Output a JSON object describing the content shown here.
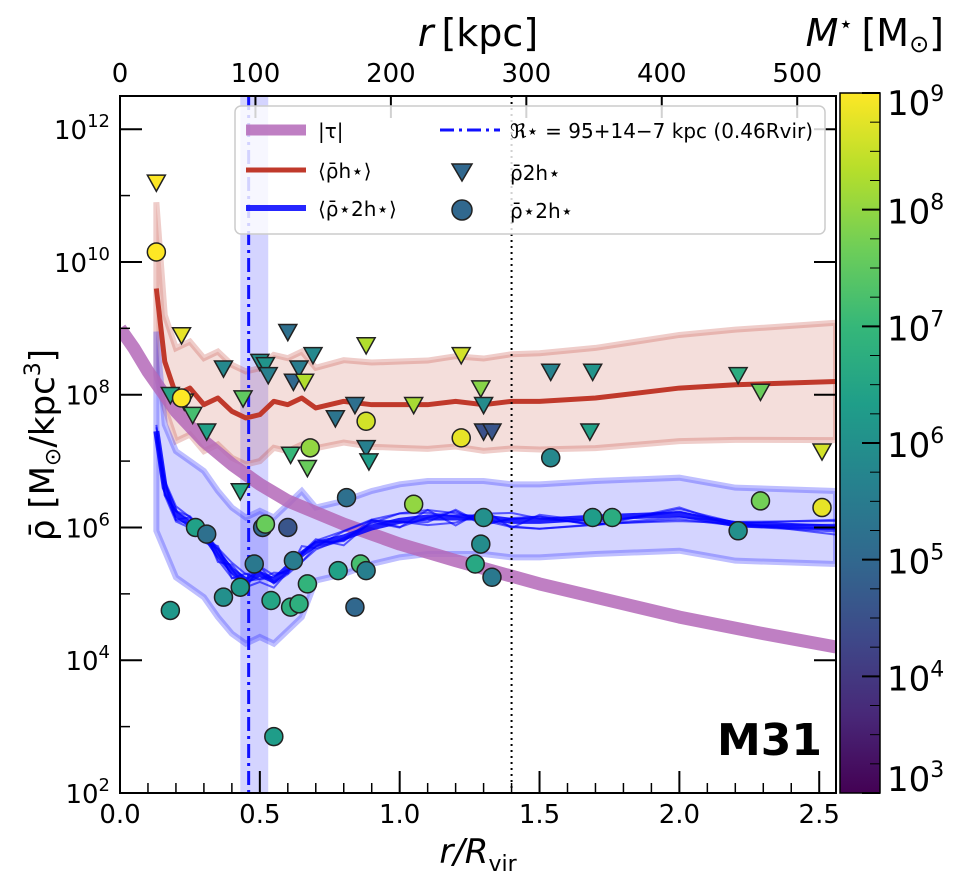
{
  "chart_data": {
    "type": "scatter",
    "panel_label": "M31",
    "x_bottom": {
      "label_main": "r/R",
      "label_sub": "vir",
      "ticks": [
        0.0,
        0.5,
        1.0,
        1.5,
        2.0,
        2.5
      ],
      "tick_labels": [
        "0.0",
        "0.5",
        "1.0",
        "1.5",
        "2.0",
        "2.5"
      ],
      "range": [
        0.0,
        2.56
      ]
    },
    "x_top": {
      "label_italic": "r",
      "label_unit": "[kpc]",
      "ticks": [
        0,
        100,
        200,
        300,
        400,
        500
      ],
      "tick_labels": [
        "0",
        "100",
        "200",
        "300",
        "400",
        "500"
      ],
      "kpc_per_rvir": 206.5
    },
    "y": {
      "label_main": "ρ̄ [M",
      "label_sun": "⊙",
      "label_tail": "/kpc",
      "label_exp": "3",
      "label_close": "]",
      "log_range": [
        2,
        12.5
      ],
      "ticks": [
        2,
        4,
        6,
        8,
        10,
        12
      ],
      "tick_base": "10",
      "tick_exps": [
        "2",
        "4",
        "6",
        "8",
        "10",
        "12"
      ]
    },
    "colorbar": {
      "title_main": "M",
      "title_star": "⋆",
      "title_unit": "[M",
      "title_sun": "⊙",
      "title_close": "]",
      "log_range": [
        3,
        9
      ],
      "ticks": [
        3,
        4,
        5,
        6,
        7,
        8,
        9
      ],
      "tick_base": "10",
      "tick_exps": [
        "3",
        "4",
        "5",
        "6",
        "7",
        "8",
        "9"
      ],
      "colors": [
        "#440154",
        "#482878",
        "#3e4989",
        "#31688e",
        "#26828e",
        "#1f9e89",
        "#35b779",
        "#6ece58",
        "#b5de2b",
        "#fde725"
      ]
    },
    "vline_dotted_x": 1.4,
    "vline_dashdot": {
      "x": 0.46,
      "band": [
        0.43,
        0.53
      ],
      "color": "#1010ff"
    },
    "legend": {
      "tau_label": "|τ|",
      "rho_h_label": "⟨ρ̄h⋆⟩",
      "rho_2h_label": "⟨ρ̄⋆2h⋆⟩",
      "radius_label": "ℜ⋆ = 95+14−7 kpc (0.46Rvir)",
      "tri_label": "ρ̄2h⋆",
      "circ_label": "ρ̄⋆2h⋆"
    },
    "series": [
      {
        "name": "|τ|",
        "color": "#b469b9",
        "x": [
          0.0,
          0.05,
          0.1,
          0.15,
          0.2,
          0.3,
          0.4,
          0.5,
          0.6,
          0.8,
          1.0,
          1.2,
          1.5,
          1.8,
          2.0,
          2.3,
          2.56
        ],
        "y": [
          9.0,
          8.7,
          8.35,
          8.05,
          7.75,
          7.3,
          6.95,
          6.65,
          6.4,
          6.05,
          5.75,
          5.5,
          5.15,
          4.85,
          4.65,
          4.4,
          4.2
        ]
      },
      {
        "name": "⟨ρ̄h⋆⟩",
        "color": "#c0392b",
        "x": [
          0.13,
          0.16,
          0.2,
          0.25,
          0.3,
          0.35,
          0.4,
          0.45,
          0.5,
          0.55,
          0.6,
          0.65,
          0.7,
          0.8,
          0.9,
          1.0,
          1.1,
          1.2,
          1.3,
          1.4,
          1.5,
          1.7,
          2.0,
          2.2,
          2.56
        ],
        "y": [
          9.6,
          8.5,
          8.0,
          8.1,
          7.85,
          7.95,
          7.75,
          7.65,
          7.7,
          7.9,
          7.85,
          7.95,
          7.8,
          7.9,
          7.85,
          7.85,
          7.85,
          7.9,
          7.85,
          7.9,
          7.9,
          7.95,
          8.1,
          8.15,
          8.2
        ]
      },
      {
        "name": "⟨ρ̄⋆2h⋆⟩",
        "color": "#0000ff",
        "x": [
          0.13,
          0.16,
          0.2,
          0.25,
          0.3,
          0.35,
          0.4,
          0.45,
          0.5,
          0.55,
          0.6,
          0.65,
          0.7,
          0.8,
          0.9,
          1.0,
          1.1,
          1.2,
          1.3,
          1.4,
          1.5,
          1.7,
          2.0,
          2.2,
          2.56
        ],
        "y": [
          7.45,
          6.6,
          6.2,
          6.05,
          5.9,
          5.6,
          5.35,
          5.2,
          5.3,
          5.2,
          5.4,
          5.6,
          5.75,
          5.85,
          6.0,
          6.1,
          6.15,
          6.15,
          6.15,
          6.1,
          6.1,
          6.15,
          6.2,
          6.05,
          6.0
        ]
      }
    ],
    "triangles": [
      {
        "x": 0.13,
        "y": 11.2,
        "m": 9.0
      },
      {
        "x": 0.22,
        "y": 8.9,
        "m": 8.8
      },
      {
        "x": 0.18,
        "y": 8.0,
        "m": 6.5
      },
      {
        "x": 0.23,
        "y": 7.9,
        "m": 8.6
      },
      {
        "x": 0.26,
        "y": 7.7,
        "m": 7.2
      },
      {
        "x": 0.31,
        "y": 7.45,
        "m": 6.4
      },
      {
        "x": 0.37,
        "y": 8.4,
        "m": 5.8
      },
      {
        "x": 0.44,
        "y": 7.95,
        "m": 7.5
      },
      {
        "x": 0.43,
        "y": 6.55,
        "m": 6.6
      },
      {
        "x": 0.5,
        "y": 8.5,
        "m": 6.0
      },
      {
        "x": 0.52,
        "y": 8.45,
        "m": 6.1
      },
      {
        "x": 0.53,
        "y": 8.3,
        "m": 5.6
      },
      {
        "x": 0.6,
        "y": 8.95,
        "m": 5.2
      },
      {
        "x": 0.62,
        "y": 8.2,
        "m": 5.0
      },
      {
        "x": 0.64,
        "y": 8.4,
        "m": 5.5
      },
      {
        "x": 0.66,
        "y": 8.2,
        "m": 8.3
      },
      {
        "x": 0.69,
        "y": 8.6,
        "m": 5.8
      },
      {
        "x": 0.61,
        "y": 7.1,
        "m": 7.0
      },
      {
        "x": 0.67,
        "y": 6.9,
        "m": 7.6
      },
      {
        "x": 0.77,
        "y": 7.65,
        "m": 5.3
      },
      {
        "x": 0.84,
        "y": 7.85,
        "m": 5.2
      },
      {
        "x": 0.88,
        "y": 8.75,
        "m": 8.3
      },
      {
        "x": 0.88,
        "y": 7.2,
        "m": 5.6
      },
      {
        "x": 0.89,
        "y": 7.0,
        "m": 6.3
      },
      {
        "x": 1.05,
        "y": 7.85,
        "m": 8.2
      },
      {
        "x": 1.22,
        "y": 8.6,
        "m": 8.6
      },
      {
        "x": 1.29,
        "y": 8.1,
        "m": 7.9
      },
      {
        "x": 1.3,
        "y": 7.85,
        "m": 5.9
      },
      {
        "x": 1.3,
        "y": 7.45,
        "m": 4.5
      },
      {
        "x": 1.33,
        "y": 7.45,
        "m": 4.6
      },
      {
        "x": 1.54,
        "y": 8.35,
        "m": 5.7
      },
      {
        "x": 1.69,
        "y": 8.35,
        "m": 6.1
      },
      {
        "x": 1.68,
        "y": 7.45,
        "m": 6.4
      },
      {
        "x": 2.21,
        "y": 8.3,
        "m": 6.7
      },
      {
        "x": 2.29,
        "y": 8.05,
        "m": 7.6
      },
      {
        "x": 2.51,
        "y": 7.15,
        "m": 8.6
      }
    ],
    "circles": [
      {
        "x": 0.13,
        "y": 10.15,
        "m": 9.0
      },
      {
        "x": 0.22,
        "y": 7.95,
        "m": 9.0
      },
      {
        "x": 0.18,
        "y": 4.75,
        "m": 6.2
      },
      {
        "x": 0.27,
        "y": 6.0,
        "m": 6.4
      },
      {
        "x": 0.31,
        "y": 5.9,
        "m": 5.2
      },
      {
        "x": 0.37,
        "y": 4.95,
        "m": 6.0
      },
      {
        "x": 0.43,
        "y": 5.1,
        "m": 6.2
      },
      {
        "x": 0.48,
        "y": 5.45,
        "m": 5.4
      },
      {
        "x": 0.51,
        "y": 6.0,
        "m": 5.0
      },
      {
        "x": 0.52,
        "y": 6.05,
        "m": 7.6
      },
      {
        "x": 0.54,
        "y": 4.9,
        "m": 6.5
      },
      {
        "x": 0.55,
        "y": 2.85,
        "m": 6.3
      },
      {
        "x": 0.6,
        "y": 6.0,
        "m": 4.6
      },
      {
        "x": 0.61,
        "y": 4.8,
        "m": 6.8
      },
      {
        "x": 0.62,
        "y": 5.5,
        "m": 5.5
      },
      {
        "x": 0.64,
        "y": 4.85,
        "m": 6.8
      },
      {
        "x": 0.67,
        "y": 5.15,
        "m": 6.9
      },
      {
        "x": 0.68,
        "y": 7.2,
        "m": 8.0
      },
      {
        "x": 0.78,
        "y": 5.35,
        "m": 6.4
      },
      {
        "x": 0.81,
        "y": 6.45,
        "m": 5.2
      },
      {
        "x": 0.84,
        "y": 4.8,
        "m": 5.0
      },
      {
        "x": 0.86,
        "y": 5.45,
        "m": 7.2
      },
      {
        "x": 0.88,
        "y": 7.6,
        "m": 8.6
      },
      {
        "x": 0.88,
        "y": 5.35,
        "m": 5.6
      },
      {
        "x": 1.05,
        "y": 6.35,
        "m": 8.0
      },
      {
        "x": 1.22,
        "y": 7.35,
        "m": 8.8
      },
      {
        "x": 1.27,
        "y": 5.45,
        "m": 6.6
      },
      {
        "x": 1.29,
        "y": 5.75,
        "m": 5.9
      },
      {
        "x": 1.3,
        "y": 6.15,
        "m": 6.0
      },
      {
        "x": 1.33,
        "y": 5.25,
        "m": 5.4
      },
      {
        "x": 1.54,
        "y": 7.05,
        "m": 5.8
      },
      {
        "x": 1.69,
        "y": 6.15,
        "m": 6.3
      },
      {
        "x": 1.76,
        "y": 6.15,
        "m": 6.7
      },
      {
        "x": 2.21,
        "y": 5.95,
        "m": 6.0
      },
      {
        "x": 2.29,
        "y": 6.4,
        "m": 7.7
      },
      {
        "x": 2.51,
        "y": 6.3,
        "m": 8.8
      }
    ]
  }
}
